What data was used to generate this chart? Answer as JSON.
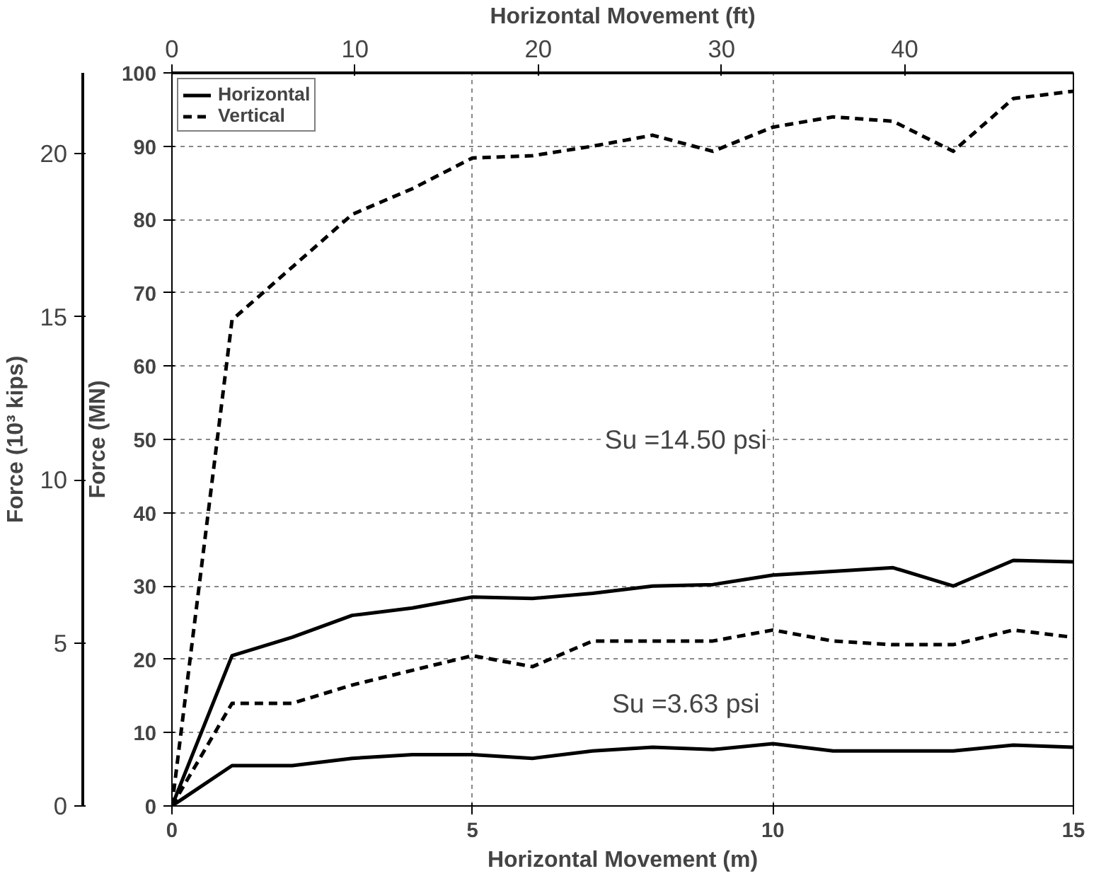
{
  "chart_data": {
    "type": "line",
    "xlabel": "Horizontal Movement (m)",
    "ylabel": "Force (MN)",
    "x2label": "Horizontal Movement (ft)",
    "y2label": "Force (10³ kips)",
    "x": [
      0,
      1,
      2,
      3,
      4,
      5,
      6,
      7,
      8,
      9,
      10,
      11,
      12,
      13,
      14,
      15
    ],
    "series": [
      {
        "name": "Horizontal",
        "color": "#000000",
        "line_style": "solid",
        "values": [
          0,
          5.5,
          5.5,
          6.5,
          7,
          7,
          6.5,
          7.5,
          8,
          7.7,
          8.5,
          7.5,
          7.5,
          7.5,
          8.3,
          8
        ]
      },
      {
        "name": "Vertical",
        "color": "#000000",
        "line_style": "dashed",
        "values": [
          0,
          14,
          14,
          16.5,
          18.5,
          20.5,
          19,
          22.5,
          22.5,
          22.5,
          24,
          22.5,
          22,
          22,
          24,
          23
        ]
      },
      {
        "color": "#000000",
        "line_style": "solid",
        "values": [
          0,
          20.5,
          23,
          26,
          27,
          28.5,
          28.3,
          29,
          30,
          30.2,
          31.5,
          32,
          32.5,
          30,
          33.5,
          33.3
        ]
      },
      {
        "color": "#000000",
        "line_style": "dashed",
        "values": [
          0,
          66.3,
          73.5,
          80.7,
          84.2,
          88.4,
          88.7,
          90,
          91.5,
          89.3,
          92.6,
          94,
          93.4,
          89.3,
          96.5,
          97.5
        ]
      }
    ],
    "xlim": [
      0,
      15
    ],
    "xticks": [
      0,
      5,
      10,
      15
    ],
    "ylim": [
      0,
      100
    ],
    "yticks": [
      0,
      10,
      20,
      30,
      40,
      50,
      60,
      70,
      80,
      90,
      100
    ],
    "x2lim": [
      0,
      49.21
    ],
    "x2ticks": [
      0,
      10,
      20,
      30,
      40
    ],
    "y2lim": [
      0,
      22.48
    ],
    "y2ticks": [
      0,
      5,
      10,
      15,
      20
    ],
    "annotations": [
      "Su =14.50 psi",
      "Su =3.63 psi"
    ],
    "grid": true,
    "legend": "top left"
  }
}
